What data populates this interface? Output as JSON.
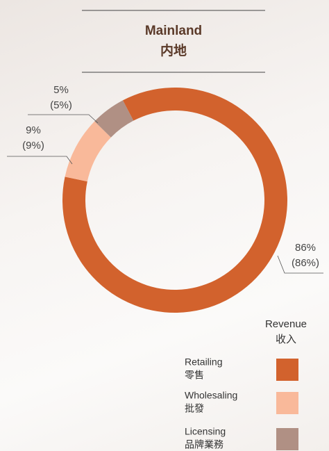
{
  "chart_data": {
    "type": "donut",
    "title": "Mainland",
    "subtitle": "内地",
    "legend_title": "Revenue",
    "legend_subtitle": "收入",
    "categories": [
      "Retailing",
      "Wholesaling",
      "Licensing"
    ],
    "categories_zh": [
      "零售",
      "批發",
      "品牌業務"
    ],
    "values": [
      86,
      9,
      5
    ],
    "value_labels": [
      "86%",
      "9%",
      "5%"
    ],
    "value_labels_2": [
      "(86%)",
      "(9%)",
      "(5%)"
    ],
    "colors": [
      "#d2622d",
      "#f9b99a",
      "#b09084"
    ]
  }
}
